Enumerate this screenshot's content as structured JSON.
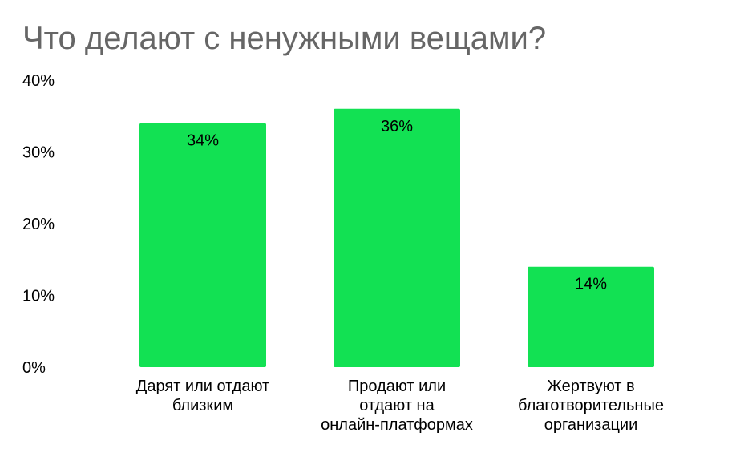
{
  "title": "Что делают с ненужными вещами?",
  "colors": {
    "bar": "#12e153"
  },
  "chart_data": {
    "type": "bar",
    "title": "Что делают с ненужными вещами?",
    "categories": [
      "Дарят или отдают близким",
      "Продают или отдают на онлайн-платформах",
      "Жертвуют в благотворительные организации"
    ],
    "category_lines": [
      [
        "Дарят или отдают",
        "близким"
      ],
      [
        "Продают или",
        "отдают на",
        "онлайн-платформах"
      ],
      [
        "Жертвуют в",
        "благотворительные",
        "организации"
      ]
    ],
    "values": [
      34,
      36,
      14
    ],
    "data_labels": [
      "34%",
      "36%",
      "14%"
    ],
    "yticks": [
      "0%",
      "10%",
      "20%",
      "30%",
      "40%"
    ],
    "ylim": [
      0,
      40
    ],
    "grid": false,
    "legend": "none"
  }
}
